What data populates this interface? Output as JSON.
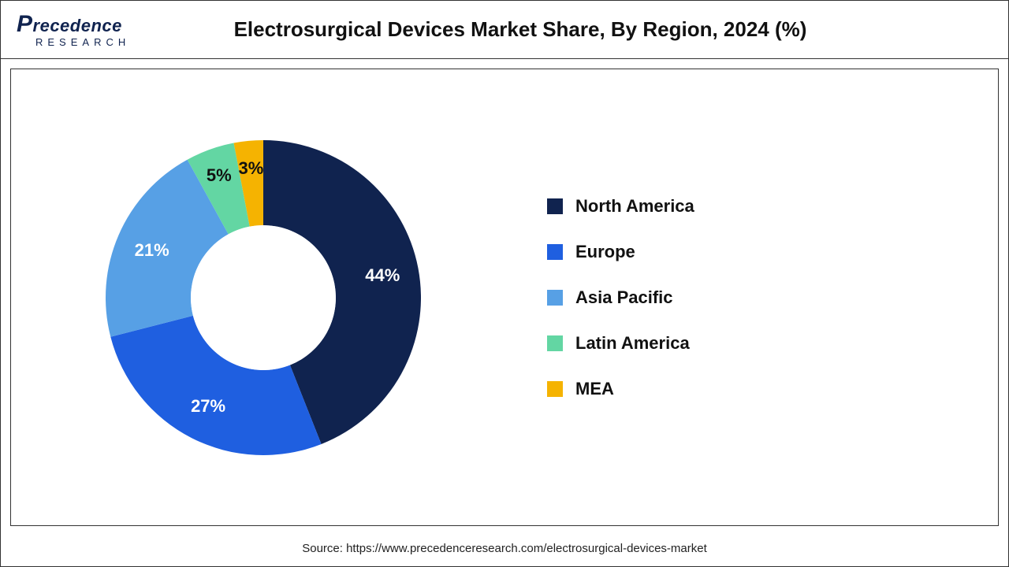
{
  "logo": {
    "line1_a": "P",
    "line1_b": "recedence",
    "line2": "RESEARCH"
  },
  "title": "Electrosurgical Devices Market Share, By Region, 2024 (%)",
  "chart": {
    "type": "donut",
    "inner_radius_ratio": 0.45,
    "start_angle_deg": 0,
    "segments": [
      {
        "label": "North America",
        "value": 44,
        "color": "#10234f",
        "pct_text": "44%",
        "label_color": "#ffffff"
      },
      {
        "label": "Europe",
        "value": 27,
        "color": "#1f5fe0",
        "pct_text": "27%",
        "label_color": "#ffffff"
      },
      {
        "label": "Asia Pacific",
        "value": 21,
        "color": "#57a0e5",
        "pct_text": "21%",
        "label_color": "#ffffff"
      },
      {
        "label": "Latin America",
        "value": 5,
        "color": "#63d6a3",
        "pct_text": "5%",
        "label_color": "#111111"
      },
      {
        "label": "MEA",
        "value": 3,
        "color": "#f5b301",
        "pct_text": "3%",
        "label_color": "#111111"
      }
    ],
    "background_color": "#ffffff",
    "donut_outer_r": 200,
    "donut_inner_r": 92,
    "label_fontsize": 22,
    "label_fontweight": 700
  },
  "legend": {
    "swatch_size": 20,
    "label_fontsize": 22,
    "label_fontweight": 700
  },
  "source": "Source: https://www.precedenceresearch.com/electrosurgical-devices-market"
}
